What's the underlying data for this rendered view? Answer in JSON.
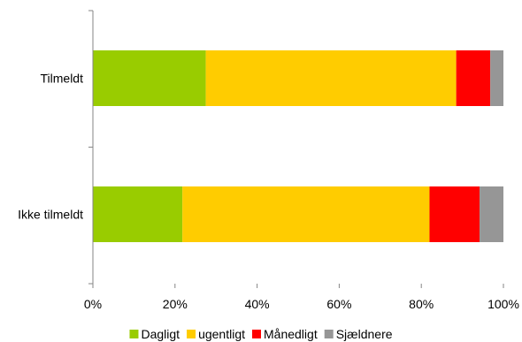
{
  "chart_data": {
    "type": "bar",
    "orientation": "horizontal",
    "stacked": true,
    "percent": true,
    "categories": [
      "Tilmeldt",
      "Ikke tilmeldt"
    ],
    "series": [
      {
        "name": "Dagligt",
        "color": "#99cc00",
        "values": [
          27.5,
          21.8
        ]
      },
      {
        "name": "ugentligt",
        "color": "#ffcc00",
        "values": [
          61.0,
          60.2
        ]
      },
      {
        "name": "Månedligt",
        "color": "#ff0000",
        "values": [
          8.3,
          12.2
        ]
      },
      {
        "name": "Sjældnere",
        "color": "#969696",
        "values": [
          3.2,
          5.8
        ]
      }
    ],
    "xlim": [
      0,
      100
    ],
    "xticks": [
      "0%",
      "20%",
      "40%",
      "60%",
      "80%",
      "100%"
    ],
    "legend_position": "bottom",
    "grid": false
  }
}
